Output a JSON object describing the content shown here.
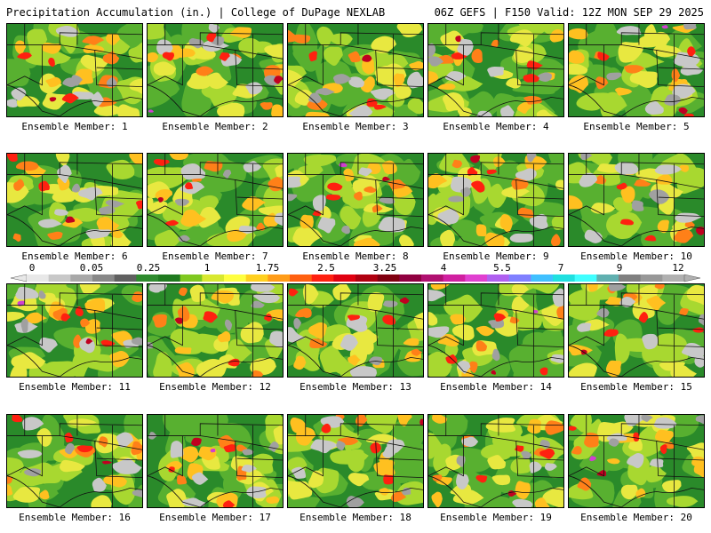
{
  "header": {
    "left": "Precipitation Accumulation (in.) | College of DuPage NEXLAB",
    "right": "06Z GEFS | F150 Valid: 12Z MON SEP 29 2025"
  },
  "colorbar": {
    "labels": [
      "0",
      "0.05",
      "0.25",
      "1",
      "1.75",
      "2.5",
      "3.25",
      "4",
      "5.5",
      "7",
      "9",
      "12"
    ],
    "colors": [
      "#e8e8e8",
      "#c8c8c8",
      "#a8a8a8",
      "#888888",
      "#606060",
      "#2e8b2e",
      "#1f7a1f",
      "#7fc820",
      "#d8e830",
      "#ffff40",
      "#ffd020",
      "#ff9c18",
      "#ff6010",
      "#ff2010",
      "#e00010",
      "#b00010",
      "#800010",
      "#900040",
      "#b01070",
      "#d020a0",
      "#e040d0",
      "#b060f0",
      "#8080ff",
      "#40c0ff",
      "#20e0e0",
      "#40ffff",
      "#60b0b0",
      "#808080",
      "#989898",
      "#b0b0b0"
    ]
  },
  "panels": [
    {
      "label": "Ensemble Member: 1"
    },
    {
      "label": "Ensemble Member: 2"
    },
    {
      "label": "Ensemble Member: 3"
    },
    {
      "label": "Ensemble Member: 4"
    },
    {
      "label": "Ensemble Member: 5"
    },
    {
      "label": "Ensemble Member: 6"
    },
    {
      "label": "Ensemble Member: 7"
    },
    {
      "label": "Ensemble Member: 8"
    },
    {
      "label": "Ensemble Member: 9"
    },
    {
      "label": "Ensemble Member: 10"
    },
    {
      "label": "Ensemble Member: 11"
    },
    {
      "label": "Ensemble Member: 12"
    },
    {
      "label": "Ensemble Member: 13"
    },
    {
      "label": "Ensemble Member: 14"
    },
    {
      "label": "Ensemble Member: 15"
    },
    {
      "label": "Ensemble Member: 16"
    },
    {
      "label": "Ensemble Member: 17"
    },
    {
      "label": "Ensemble Member: 18"
    },
    {
      "label": "Ensemble Member: 19"
    },
    {
      "label": "Ensemble Member: 20"
    }
  ]
}
